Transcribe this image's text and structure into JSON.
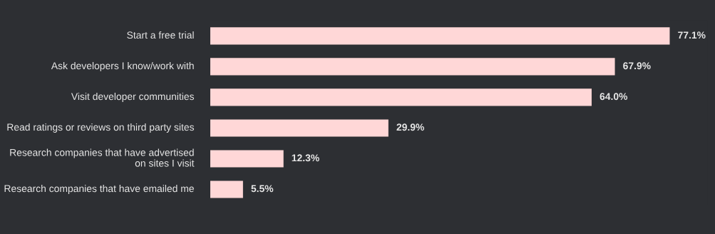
{
  "chart_data": {
    "type": "bar",
    "orientation": "horizontal",
    "categories": [
      "Start a free trial",
      "Ask developers I know/work with",
      "Visit developer communities",
      "Read ratings or reviews on third party sites",
      "Research companies that have advertised on sites I visit",
      "Research companies that have emailed me"
    ],
    "values": [
      77.1,
      67.9,
      64.0,
      29.9,
      12.3,
      5.5
    ],
    "value_labels": [
      "77.1%",
      "67.9%",
      "64.0%",
      "29.9%",
      "12.3%",
      "5.5%"
    ],
    "color": "#ffd7d7",
    "grid": false,
    "legend": false
  }
}
